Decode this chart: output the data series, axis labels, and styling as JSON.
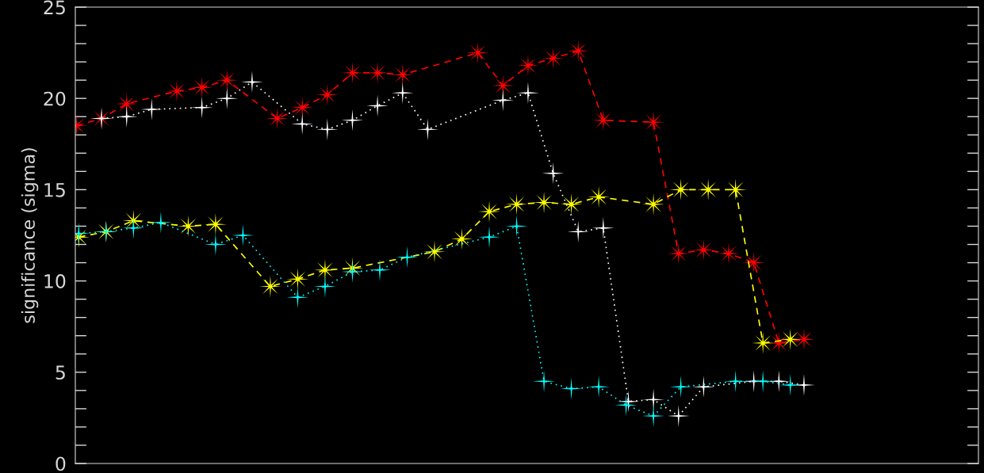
{
  "chart_data": {
    "type": "line",
    "ylabel": "significance (sigma)",
    "legend": false,
    "grid": false,
    "tick_labels": "y",
    "categories": [
      null,
      null,
      null,
      null,
      null,
      null,
      null,
      null,
      null,
      null,
      null,
      null,
      null,
      null,
      null,
      null,
      null,
      null,
      null,
      null,
      null,
      null,
      null,
      null,
      null,
      null,
      null,
      null,
      null,
      null,
      null,
      null,
      null,
      null,
      null,
      null,
      null,
      null,
      null,
      null,
      null,
      null,
      null,
      null,
      null,
      null,
      null,
      null,
      null,
      null,
      null,
      null,
      null,
      null,
      null,
      null,
      null,
      null,
      null,
      null,
      null,
      null,
      null,
      null,
      null,
      null,
      null,
      null,
      null,
      null,
      null,
      null,
      null,
      null,
      null,
      null,
      null,
      null,
      null,
      null,
      null,
      null,
      null,
      null,
      null,
      null,
      null,
      null,
      null,
      null,
      null,
      null,
      null,
      null,
      null,
      null,
      null,
      null,
      null,
      null,
      null,
      null,
      null,
      null,
      null,
      null,
      null,
      null,
      null,
      null,
      null,
      null,
      null,
      null,
      null,
      null,
      null,
      null,
      null,
      null,
      null,
      null,
      null,
      null,
      null,
      null,
      null,
      null,
      null,
      null,
      null,
      null,
      null,
      null,
      null,
      null,
      null,
      null,
      null,
      null,
      null,
      null,
      null,
      null,
      null,
      null,
      null,
      null,
      null,
      null,
      null,
      null,
      null,
      null,
      null,
      null,
      null,
      null,
      null,
      null,
      null,
      null,
      null,
      null,
      null,
      null,
      null,
      null,
      null,
      null,
      null,
      null,
      null,
      null,
      null,
      null,
      null,
      null,
      null,
      null,
      null,
      null,
      null,
      null,
      null,
      null,
      null,
      null,
      null,
      null,
      null,
      null,
      null,
      null,
      null,
      null,
      null,
      null,
      null,
      null,
      null,
      null,
      null,
      null,
      null,
      null,
      null,
      null,
      null,
      null,
      null,
      null,
      null,
      null,
      null,
      null,
      null,
      null,
      null,
      null,
      null,
      null,
      null,
      null,
      null,
      null,
      null,
      null,
      null,
      null,
      null,
      null,
      null,
      null,
      null,
      null,
      null,
      null,
      null,
      null,
      null,
      null,
      null,
      null,
      null,
      null,
      null,
      null,
      null,
      null,
      null,
      null,
      null,
      null,
      null,
      null,
      null,
      null,
      null,
      null,
      null,
      null,
      null,
      null,
      null,
      null,
      null,
      null,
      null,
      null,
      null,
      null,
      null,
      null,
      null,
      null,
      null,
      null,
      null,
      null,
      null,
      null,
      null,
      null,
      null,
      null,
      null,
      null,
      null,
      null,
      null,
      null,
      null,
      null,
      null,
      null,
      null,
      null,
      null,
      null,
      null,
      null,
      null,
      null,
      null,
      null,
      null,
      null,
      null,
      null,
      null,
      null,
      null,
      null,
      null,
      null,
      null,
      null,
      null,
      null,
      null,
      null,
      null,
      null,
      null,
      null,
      null,
      null,
      null,
      null,
      null,
      null,
      null,
      null,
      null,
      null,
      null,
      null,
      null,
      null,
      null,
      null,
      null,
      null,
      null,
      null,
      null,
      null,
      null,
      null,
      null,
      null,
      null,
      null,
      null,
      null,
      null,
      null,
      null,
      null,
      null,
      null,
      null,
      null,
      null,
      null,
      null,
      null,
      null,
      null,
      null,
      null,
      null,
      null,
      null,
      null,
      null,
      null,
      null,
      null,
      null,
      null,
      null,
      null,
      null,
      null,
      null,
      null,
      null,
      null,
      null,
      null,
      null,
      null,
      null,
      null
    ],
    "ylim": [
      0,
      25
    ],
    "yticks": [
      0,
      {
        "value": 1,
        "label": null
      },
      {
        "value": 2,
        "label": null
      },
      {
        "value": 3,
        "label": null
      },
      {
        "value": 4,
        "label": null
      },
      5,
      {
        "value": 6,
        "label": null
      },
      {
        "value": 7,
        "label": null
      },
      {
        "value": 8,
        "label": null
      },
      {
        "value": 9,
        "label": null
      },
      10,
      {
        "value": 11,
        "label": null
      },
      {
        "value": 12,
        "label": null
      },
      {
        "value": 13,
        "label": null
      },
      {
        "value": 14,
        "label": null
      },
      15,
      {
        "value": 16,
        "label": null
      },
      {
        "value": 17,
        "label": null
      },
      {
        "value": 18,
        "label": null
      },
      {
        "value": 19,
        "label": null
      },
      20,
      {
        "value": 21,
        "label": null
      },
      {
        "value": 22,
        "label": null
      },
      {
        "value": 23,
        "label": null
      },
      {
        "value": 24,
        "label": null
      },
      25
    ],
    "series": [
      {
        "color": "#ff0000",
        "marker": "star",
        "line_style": "dashed",
        "values": [
          18.5,
          null,
          null,
          null,
          null,
          null,
          null,
          null,
          null,
          null,
          null,
          18.9,
          null,
          null,
          null,
          null,
          null,
          null,
          null,
          null,
          null,
          null,
          19.7,
          null,
          null,
          null,
          null,
          null,
          null,
          null,
          null,
          null,
          null,
          null,
          null,
          null,
          null,
          null,
          null,
          null,
          null,
          null,
          null,
          null,
          20.4,
          null,
          null,
          null,
          null,
          null,
          null,
          null,
          null,
          null,
          null,
          20.6,
          null,
          null,
          null,
          null,
          null,
          null,
          null,
          null,
          null,
          null,
          21.0,
          null,
          null,
          null,
          null,
          null,
          null,
          null,
          null,
          null,
          null,
          null,
          null,
          null,
          null,
          null,
          null,
          null,
          null,
          null,
          null,
          null,
          18.9,
          null,
          null,
          null,
          null,
          null,
          null,
          null,
          null,
          null,
          null,
          19.5,
          null,
          null,
          null,
          null,
          null,
          null,
          null,
          null,
          null,
          null,
          20.2,
          null,
          null,
          null,
          null,
          null,
          null,
          null,
          null,
          null,
          null,
          21.4,
          null,
          null,
          null,
          null,
          null,
          null,
          null,
          null,
          null,
          null,
          21.4,
          null,
          null,
          null,
          null,
          null,
          null,
          null,
          null,
          null,
          null,
          21.3,
          null,
          null,
          null,
          null,
          null,
          null,
          null,
          null,
          null,
          null,
          null,
          null,
          null,
          null,
          null,
          null,
          null,
          null,
          null,
          null,
          null,
          null,
          null,
          null,
          null,
          null,
          null,
          null,
          null,
          null,
          null,
          null,
          22.5,
          null,
          null,
          null,
          null,
          null,
          null,
          null,
          null,
          null,
          null,
          20.7,
          null,
          null,
          null,
          null,
          null,
          null,
          null,
          null,
          null,
          null,
          21.8,
          null,
          null,
          null,
          null,
          null,
          null,
          null,
          null,
          null,
          null,
          22.2,
          null,
          null,
          null,
          null,
          null,
          null,
          null,
          null,
          null,
          null,
          22.6,
          null,
          null,
          null,
          null,
          null,
          null,
          null,
          null,
          null,
          null,
          18.8,
          null,
          null,
          null,
          null,
          null,
          null,
          null,
          null,
          null,
          null,
          null,
          null,
          null,
          null,
          null,
          null,
          null,
          null,
          null,
          null,
          null,
          18.7,
          null,
          null,
          null,
          null,
          null,
          null,
          null,
          null,
          null,
          null,
          11.5,
          null,
          null,
          null,
          null,
          null,
          null,
          null,
          null,
          null,
          null,
          11.7,
          null,
          null,
          null,
          null,
          null,
          null,
          null,
          null,
          null,
          null,
          11.5,
          null,
          null,
          null,
          null,
          null,
          null,
          null,
          null,
          null,
          null,
          11.0,
          null,
          null,
          null,
          null,
          null,
          null,
          null,
          null,
          null,
          null,
          6.6,
          null,
          null,
          null,
          null,
          null,
          null,
          null,
          null,
          null,
          null,
          6.8,
          null,
          null,
          null,
          null,
          null,
          null,
          null,
          null,
          null,
          null,
          null,
          null,
          null,
          null,
          null,
          null,
          null,
          null,
          null,
          null,
          null,
          null,
          null,
          null,
          null,
          null,
          null,
          null,
          null,
          null,
          null,
          null,
          null,
          null,
          null,
          null,
          null,
          null,
          null,
          null,
          null,
          null,
          null,
          null,
          null,
          null,
          null,
          null,
          null,
          null,
          null,
          null,
          null,
          null,
          null,
          null,
          null,
          null,
          null,
          null,
          null,
          null,
          null,
          null,
          null,
          null,
          null,
          null,
          null,
          null,
          null,
          null,
          null,
          null,
          null,
          null
        ]
      },
      {
        "color": "#ffffff",
        "marker": "cross",
        "line_style": "dotted",
        "values": [
          null,
          null,
          null,
          null,
          null,
          null,
          null,
          null,
          null,
          null,
          null,
          18.9,
          null,
          null,
          null,
          null,
          null,
          null,
          null,
          null,
          null,
          null,
          19.0,
          null,
          null,
          null,
          null,
          null,
          null,
          null,
          null,
          null,
          null,
          19.4,
          null,
          null,
          null,
          null,
          null,
          null,
          null,
          null,
          null,
          null,
          null,
          null,
          null,
          null,
          null,
          null,
          null,
          null,
          null,
          null,
          null,
          19.5,
          null,
          null,
          null,
          null,
          null,
          null,
          null,
          null,
          null,
          null,
          20.0,
          null,
          null,
          null,
          null,
          null,
          null,
          null,
          null,
          null,
          null,
          20.9,
          null,
          null,
          null,
          null,
          null,
          null,
          null,
          null,
          null,
          null,
          null,
          null,
          null,
          null,
          null,
          null,
          null,
          null,
          null,
          null,
          null,
          18.6,
          null,
          null,
          null,
          null,
          null,
          null,
          null,
          null,
          null,
          null,
          18.3,
          null,
          null,
          null,
          null,
          null,
          null,
          null,
          null,
          null,
          null,
          18.8,
          null,
          null,
          null,
          null,
          null,
          null,
          null,
          null,
          null,
          null,
          19.6,
          null,
          null,
          null,
          null,
          null,
          null,
          null,
          null,
          null,
          null,
          20.3,
          null,
          null,
          null,
          null,
          null,
          null,
          null,
          null,
          null,
          null,
          18.3,
          null,
          null,
          null,
          null,
          null,
          null,
          null,
          null,
          null,
          null,
          null,
          null,
          null,
          null,
          null,
          null,
          null,
          null,
          null,
          null,
          null,
          null,
          null,
          null,
          null,
          null,
          null,
          null,
          null,
          null,
          null,
          null,
          19.9,
          null,
          null,
          null,
          null,
          null,
          null,
          null,
          null,
          null,
          null,
          20.3,
          null,
          null,
          null,
          null,
          null,
          null,
          null,
          null,
          null,
          null,
          15.9,
          null,
          null,
          null,
          null,
          null,
          null,
          null,
          null,
          null,
          null,
          12.7,
          null,
          null,
          null,
          null,
          null,
          null,
          null,
          null,
          null,
          null,
          12.9,
          null,
          null,
          null,
          null,
          null,
          null,
          null,
          null,
          null,
          null,
          3.4,
          null,
          null,
          null,
          null,
          null,
          null,
          null,
          null,
          null,
          null,
          3.5,
          null,
          null,
          null,
          null,
          null,
          null,
          null,
          null,
          null,
          null,
          2.6,
          null,
          null,
          null,
          null,
          null,
          null,
          null,
          null,
          null,
          null,
          4.2,
          null,
          null,
          null,
          null,
          null,
          null,
          null,
          null,
          null,
          null,
          null,
          null,
          null,
          null,
          null,
          null,
          null,
          null,
          null,
          null,
          null,
          4.5,
          null,
          null,
          null,
          null,
          null,
          null,
          null,
          null,
          null,
          null,
          4.5,
          null,
          null,
          null,
          null,
          null,
          null,
          null,
          null,
          null,
          null,
          4.3,
          null,
          null,
          null,
          null,
          null,
          null,
          null,
          null,
          null,
          null,
          null,
          null,
          null,
          null,
          null,
          null,
          null,
          null,
          null,
          null,
          null,
          null,
          null,
          null,
          null,
          null,
          null,
          null,
          null,
          null,
          null,
          null,
          null,
          null,
          null,
          null,
          null,
          null,
          null,
          null,
          null,
          null,
          null,
          null,
          null,
          null,
          null,
          null,
          null,
          null,
          null,
          null,
          null,
          null,
          null,
          null,
          null,
          null,
          null,
          null,
          null,
          null,
          null,
          null,
          null,
          null,
          null,
          null,
          null,
          null,
          null,
          null,
          null,
          null,
          null,
          null
        ]
      },
      {
        "color": "#ffff00",
        "marker": "star",
        "line_style": "dashed",
        "values": [
          null,
          12.4,
          null,
          null,
          null,
          null,
          null,
          null,
          null,
          null,
          null,
          null,
          null,
          12.7,
          null,
          null,
          null,
          null,
          null,
          null,
          null,
          null,
          null,
          null,
          null,
          13.3,
          null,
          null,
          null,
          null,
          null,
          null,
          null,
          null,
          null,
          null,
          null,
          null,
          null,
          null,
          null,
          null,
          null,
          null,
          null,
          null,
          null,
          null,
          null,
          13.0,
          null,
          null,
          null,
          null,
          null,
          null,
          null,
          null,
          null,
          null,
          null,
          13.1,
          null,
          null,
          null,
          null,
          null,
          null,
          null,
          null,
          null,
          null,
          null,
          null,
          null,
          null,
          null,
          null,
          null,
          null,
          null,
          null,
          null,
          null,
          null,
          9.7,
          null,
          null,
          null,
          null,
          null,
          null,
          null,
          null,
          null,
          null,
          null,
          10.1,
          null,
          null,
          null,
          null,
          null,
          null,
          null,
          null,
          null,
          null,
          null,
          10.6,
          null,
          null,
          null,
          null,
          null,
          null,
          null,
          null,
          null,
          null,
          null,
          10.7,
          null,
          null,
          null,
          null,
          null,
          null,
          null,
          null,
          null,
          null,
          null,
          null,
          null,
          null,
          null,
          null,
          null,
          null,
          null,
          null,
          null,
          null,
          null,
          null,
          null,
          null,
          null,
          null,
          null,
          null,
          null,
          null,
          null,
          null,
          null,
          11.6,
          null,
          null,
          null,
          null,
          null,
          null,
          null,
          null,
          null,
          null,
          null,
          12.3,
          null,
          null,
          null,
          null,
          null,
          null,
          null,
          null,
          null,
          null,
          null,
          13.8,
          null,
          null,
          null,
          null,
          null,
          null,
          null,
          null,
          null,
          null,
          null,
          14.2,
          null,
          null,
          null,
          null,
          null,
          null,
          null,
          null,
          null,
          null,
          null,
          14.3,
          null,
          null,
          null,
          null,
          null,
          null,
          null,
          null,
          null,
          null,
          null,
          14.2,
          null,
          null,
          null,
          null,
          null,
          null,
          null,
          null,
          null,
          null,
          null,
          14.6,
          null,
          null,
          null,
          null,
          null,
          null,
          null,
          null,
          null,
          null,
          null,
          null,
          null,
          null,
          null,
          null,
          null,
          null,
          null,
          null,
          null,
          null,
          null,
          14.2,
          null,
          null,
          null,
          null,
          null,
          null,
          null,
          null,
          null,
          null,
          null,
          15.0,
          null,
          null,
          null,
          null,
          null,
          null,
          null,
          null,
          null,
          null,
          null,
          15.0,
          null,
          null,
          null,
          null,
          null,
          null,
          null,
          null,
          null,
          null,
          null,
          15.0,
          null,
          null,
          null,
          null,
          null,
          null,
          null,
          null,
          null,
          null,
          null,
          6.6,
          null,
          null,
          null,
          null,
          null,
          null,
          null,
          null,
          null,
          null,
          null,
          6.8,
          null,
          null,
          null,
          null,
          null,
          null,
          null,
          null,
          null,
          null,
          null,
          null,
          null,
          null,
          null,
          null,
          null,
          null,
          null,
          null,
          null,
          null,
          null,
          null,
          null,
          null,
          null,
          null,
          null,
          null,
          null,
          null,
          null,
          null,
          null,
          null,
          null,
          null,
          null,
          null,
          null,
          null,
          null,
          null,
          null,
          null,
          null,
          null,
          null,
          null,
          null,
          null,
          null,
          null,
          null,
          null,
          null,
          null,
          null,
          null,
          null,
          null,
          null,
          null,
          null,
          null,
          null,
          null,
          null,
          null,
          null,
          null,
          null,
          null,
          null,
          null,
          null,
          null,
          null,
          null,
          null,
          null
        ]
      },
      {
        "color": "#00ffff",
        "marker": "cross",
        "line_style": "dotted",
        "values": [
          null,
          12.6,
          null,
          null,
          null,
          null,
          null,
          null,
          null,
          null,
          null,
          null,
          null,
          12.7,
          null,
          null,
          null,
          null,
          null,
          null,
          null,
          null,
          null,
          null,
          null,
          12.9,
          null,
          null,
          null,
          null,
          null,
          null,
          null,
          null,
          null,
          null,
          null,
          13.2,
          null,
          null,
          null,
          null,
          null,
          null,
          null,
          null,
          null,
          null,
          null,
          null,
          null,
          null,
          null,
          null,
          null,
          null,
          null,
          null,
          null,
          null,
          null,
          12.0,
          null,
          null,
          null,
          null,
          null,
          null,
          null,
          null,
          null,
          null,
          null,
          12.5,
          null,
          null,
          null,
          null,
          null,
          null,
          null,
          null,
          null,
          null,
          null,
          null,
          null,
          null,
          null,
          null,
          null,
          null,
          null,
          null,
          null,
          null,
          null,
          9.1,
          null,
          null,
          null,
          null,
          null,
          null,
          null,
          null,
          null,
          null,
          null,
          9.7,
          null,
          null,
          null,
          null,
          null,
          null,
          null,
          null,
          null,
          null,
          null,
          10.5,
          null,
          null,
          null,
          null,
          null,
          null,
          null,
          null,
          null,
          null,
          null,
          10.6,
          null,
          null,
          null,
          null,
          null,
          null,
          null,
          null,
          null,
          null,
          null,
          11.3,
          null,
          null,
          null,
          null,
          null,
          null,
          null,
          null,
          null,
          null,
          null,
          null,
          null,
          null,
          null,
          null,
          null,
          null,
          null,
          null,
          null,
          null,
          null,
          null,
          null,
          null,
          null,
          null,
          null,
          null,
          null,
          null,
          null,
          null,
          null,
          12.4,
          null,
          null,
          null,
          null,
          null,
          null,
          null,
          null,
          null,
          null,
          null,
          13.0,
          null,
          null,
          null,
          null,
          null,
          null,
          null,
          null,
          null,
          null,
          null,
          4.5,
          null,
          null,
          null,
          null,
          null,
          null,
          null,
          null,
          null,
          null,
          null,
          4.1,
          null,
          null,
          null,
          null,
          null,
          null,
          null,
          null,
          null,
          null,
          null,
          4.2,
          null,
          null,
          null,
          null,
          null,
          null,
          null,
          null,
          null,
          null,
          null,
          3.2,
          null,
          null,
          null,
          null,
          null,
          null,
          null,
          null,
          null,
          null,
          null,
          2.6,
          null,
          null,
          null,
          null,
          null,
          null,
          null,
          null,
          null,
          null,
          null,
          4.2,
          null,
          null,
          null,
          null,
          null,
          null,
          null,
          null,
          null,
          null,
          null,
          null,
          null,
          null,
          null,
          null,
          null,
          null,
          null,
          null,
          null,
          null,
          null,
          4.5,
          null,
          null,
          null,
          null,
          null,
          null,
          null,
          null,
          null,
          null,
          null,
          4.5,
          null,
          null,
          null,
          null,
          null,
          null,
          null,
          null,
          null,
          null,
          null,
          4.3,
          null,
          null,
          null,
          null,
          null,
          null,
          null,
          null,
          null,
          null,
          null,
          null,
          null,
          null,
          null,
          null,
          null,
          null,
          null,
          null,
          null,
          null,
          null,
          null,
          null,
          null,
          null,
          null,
          null,
          null,
          null,
          null,
          null,
          null,
          null,
          null,
          null,
          null,
          null,
          null,
          null,
          null,
          null,
          null,
          null,
          null,
          null,
          null,
          null,
          null,
          null,
          null,
          null,
          null,
          null,
          null,
          null,
          null,
          null,
          null,
          null,
          null,
          null,
          null,
          null,
          null,
          null,
          null,
          null,
          null,
          null,
          null,
          null,
          null,
          null,
          null,
          null,
          null,
          null,
          null,
          null,
          null
        ]
      }
    ]
  }
}
